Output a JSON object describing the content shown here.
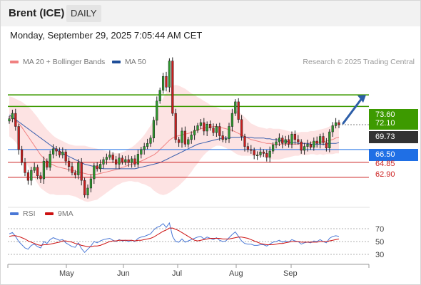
{
  "header": {
    "title": "Brent (ICE)",
    "period": "DAILY"
  },
  "timestamp": "Monday, September 29, 2025 7:05:44 AM CET",
  "legend": {
    "items": [
      {
        "label": "MA 20 + Bollinger Bands",
        "color": "#f08080"
      },
      {
        "label": "MA 50",
        "color": "#1f4e99"
      }
    ],
    "copyright": "Research © 2025 Trading Central"
  },
  "levels": {
    "resistance_2": "73.60",
    "resistance_1": "72.10",
    "last_price": "69.73",
    "pivot": "66.50",
    "support_1": "64.85",
    "support_2": "62.90"
  },
  "colors": {
    "resistance": "#3d9a00",
    "pivot": "#1f6fe5",
    "support": "#cc2222",
    "last": "#333333",
    "bollinger_fill": "#fde3e3"
  },
  "rsi_panel": {
    "legend": [
      {
        "label": "RSI",
        "color": "#4a78d6"
      },
      {
        "label": "9MA",
        "color": "#cc1111"
      }
    ],
    "axis": [
      "70",
      "50",
      "30"
    ]
  },
  "x_axis": {
    "months": [
      "May",
      "Jun",
      "Jul",
      "Aug",
      "Sep"
    ]
  },
  "chart_data": [
    {
      "type": "candlestick",
      "title": "Brent (ICE)",
      "timeframe": "daily",
      "y_range": [
        59.0,
        77.5
      ],
      "last_price": 69.73,
      "horizontal_levels": [
        73.6,
        72.1,
        66.5,
        64.85,
        62.9
      ],
      "forecast_target": 73.6,
      "close": [
        70.5,
        71.2,
        69.5,
        66.5,
        64.8,
        63.5,
        62.5,
        63.8,
        64.2,
        63.1,
        62.7,
        65.0,
        64.2,
        65.9,
        66.6,
        66.3,
        65.8,
        66.2,
        65.0,
        64.3,
        63.5,
        63.2,
        64.8,
        62.5,
        60.6,
        61.5,
        62.7,
        64.4,
        64.0,
        64.6,
        65.2,
        65.5,
        65.8,
        65.2,
        64.6,
        65.4,
        64.9,
        65.2,
        64.8,
        65.3,
        64.6,
        65.9,
        66.5,
        66.9,
        67.3,
        68.0,
        70.3,
        72.8,
        74.2,
        76.0,
        74.6,
        78.0,
        71.2,
        67.8,
        67.4,
        68.9,
        67.2,
        67.8,
        68.4,
        69.0,
        69.6,
        70.0,
        68.9,
        69.8,
        69.3,
        68.7,
        69.5,
        68.3,
        67.8,
        67.9,
        69.5,
        71.2,
        72.7,
        70.4,
        68.2,
        66.9,
        66.5,
        66.4,
        65.8,
        65.8,
        66.2,
        66.0,
        65.5,
        66.3,
        67.1,
        67.5,
        68.0,
        67.3,
        67.8,
        67.2,
        68.5,
        67.8,
        67.5,
        66.4,
        66.9,
        67.2,
        66.8,
        67.6,
        67.3,
        68.2,
        67.4,
        66.7,
        68.8,
        69.6,
        70.0,
        69.73
      ],
      "ma20": [
        70.8,
        70.6,
        70.3,
        69.9,
        69.4,
        68.8,
        68.2,
        67.6,
        67.0,
        66.4,
        65.8,
        65.4,
        65.0,
        64.7,
        64.5,
        64.3,
        64.2,
        64.1,
        64.0,
        63.9,
        63.8,
        63.7,
        63.6,
        63.5,
        63.4,
        63.3,
        63.3,
        63.3,
        63.3,
        63.4,
        63.5,
        63.6,
        63.7,
        63.8,
        63.9,
        64.0,
        64.2,
        64.3,
        64.5,
        64.6,
        64.7,
        64.9,
        65.0,
        65.2,
        65.4,
        65.6,
        65.8,
        66.1,
        66.5,
        66.9,
        67.3,
        67.7,
        68.0,
        68.2,
        68.3,
        68.4,
        68.5,
        68.6,
        68.7,
        68.9,
        69.0,
        69.2,
        69.3,
        69.4,
        69.4,
        69.5,
        69.5,
        69.4,
        69.3,
        69.2,
        69.1,
        69.0,
        68.8,
        68.6,
        68.4,
        68.2,
        68.0,
        67.8,
        67.7,
        67.6,
        67.5,
        67.4,
        67.3,
        67.3,
        67.2,
        67.2,
        67.2,
        67.2,
        67.2,
        67.2,
        67.2,
        67.2,
        67.2,
        67.3,
        67.3,
        67.3,
        67.4,
        67.4,
        67.4,
        67.5,
        67.5,
        67.6,
        67.7,
        67.8,
        68.0,
        68.1
      ],
      "ma50": [
        71.0,
        70.7,
        70.4,
        70.1,
        69.8,
        69.5,
        69.2,
        68.9,
        68.6,
        68.3,
        68.0,
        67.7,
        67.4,
        67.1,
        66.8,
        66.5,
        66.2,
        66.0,
        65.8,
        65.6,
        65.4,
        65.2,
        65.0,
        64.8,
        64.6,
        64.5,
        64.4,
        64.3,
        64.2,
        64.1,
        64.0,
        64.0,
        64.0,
        64.0,
        64.0,
        64.0,
        64.0,
        64.0,
        64.0,
        64.0,
        64.0,
        64.1,
        64.2,
        64.3,
        64.4,
        64.5,
        64.6,
        64.7,
        64.8,
        65.0,
        65.2,
        65.4,
        65.6,
        65.8,
        66.0,
        66.2,
        66.4,
        66.6,
        66.8,
        67.0,
        67.2,
        67.3,
        67.4,
        67.5,
        67.6,
        67.7,
        67.8,
        67.9,
        68.0,
        68.0,
        68.0,
        68.1,
        68.1,
        68.1,
        68.1,
        68.1,
        68.1,
        68.1,
        68.0,
        68.0,
        68.0,
        68.0,
        67.9,
        67.9,
        67.8,
        67.8,
        67.7,
        67.6,
        67.6,
        67.5,
        67.4,
        67.4,
        67.3,
        67.3,
        67.3,
        67.3,
        67.2,
        67.2,
        67.2,
        67.2,
        67.2,
        67.2,
        67.3,
        67.3,
        67.3,
        67.4
      ],
      "band_width": [
        2.6,
        2.7,
        2.8,
        3.0,
        3.3,
        3.6,
        3.9,
        4.1,
        4.2,
        4.3,
        4.3,
        4.2,
        4.1,
        4.0,
        3.8,
        3.7,
        3.6,
        3.5,
        3.4,
        3.3,
        3.3,
        3.3,
        3.4,
        3.5,
        3.6,
        3.6,
        3.5,
        3.4,
        3.3,
        3.1,
        2.9,
        2.7,
        2.5,
        2.3,
        2.1,
        2.0,
        2.0,
        2.0,
        2.1,
        2.2,
        2.4,
        2.6,
        2.9,
        3.2,
        3.6,
        4.0,
        4.6,
        5.2,
        5.8,
        6.3,
        6.6,
        6.8,
        6.8,
        6.7,
        6.5,
        6.2,
        5.9,
        5.5,
        5.1,
        4.7,
        4.3,
        3.9,
        3.5,
        3.2,
        2.9,
        2.7,
        2.5,
        2.4,
        2.4,
        2.5,
        2.6,
        2.7,
        2.8,
        2.8,
        2.7,
        2.5,
        2.3,
        2.1,
        2.0,
        1.9,
        1.9,
        1.9,
        1.9,
        2.0,
        2.0,
        2.0,
        2.0,
        1.9,
        1.8,
        1.7,
        1.6,
        1.5,
        1.5,
        1.5,
        1.5,
        1.5,
        1.5,
        1.5,
        1.6,
        1.6,
        1.7,
        1.7,
        1.8,
        1.9,
        2.0,
        2.1
      ]
    },
    {
      "type": "line",
      "title": "RSI",
      "y_range": [
        20,
        80
      ],
      "series": [
        {
          "name": "RSI",
          "values": [
            62,
            64,
            58,
            50,
            45,
            40,
            38,
            44,
            46,
            42,
            40,
            50,
            47,
            53,
            56,
            54,
            52,
            53,
            48,
            45,
            42,
            41,
            48,
            39,
            33,
            38,
            43,
            50,
            48,
            51,
            53,
            54,
            55,
            52,
            50,
            53,
            51,
            52,
            50,
            52,
            50,
            55,
            57,
            58,
            60,
            62,
            68,
            72,
            74,
            78,
            72,
            79,
            58,
            50,
            49,
            54,
            49,
            51,
            53,
            55,
            57,
            58,
            54,
            57,
            55,
            53,
            56,
            52,
            50,
            51,
            56,
            61,
            65,
            58,
            51,
            47,
            46,
            46,
            44,
            44,
            45,
            45,
            43,
            46,
            49,
            50,
            52,
            49,
            51,
            49,
            53,
            51,
            50,
            46,
            48,
            49,
            48,
            51,
            50,
            53,
            50,
            48,
            55,
            58,
            59,
            58
          ]
        },
        {
          "name": "9MA",
          "values": [
            58,
            59,
            59,
            58,
            56,
            54,
            51,
            49,
            47,
            45,
            44,
            45,
            45,
            46,
            47,
            48,
            49,
            51,
            51,
            50,
            49,
            47,
            46,
            44,
            43,
            42,
            42,
            43,
            43,
            44,
            46,
            48,
            50,
            51,
            51,
            52,
            52,
            52,
            52,
            52,
            51,
            52,
            52,
            53,
            54,
            55,
            57,
            60,
            63,
            66,
            68,
            71,
            71,
            69,
            67,
            64,
            61,
            58,
            55,
            52,
            51,
            52,
            53,
            54,
            55,
            55,
            55,
            55,
            54,
            54,
            54,
            55,
            56,
            57,
            57,
            56,
            55,
            53,
            51,
            49,
            47,
            46,
            45,
            45,
            45,
            46,
            47,
            47,
            48,
            49,
            50,
            50,
            50,
            49,
            49,
            49,
            49,
            49,
            49,
            50,
            50,
            50,
            51,
            52,
            53,
            54
          ]
        }
      ],
      "reference_lines": [
        70,
        50,
        30
      ]
    }
  ]
}
